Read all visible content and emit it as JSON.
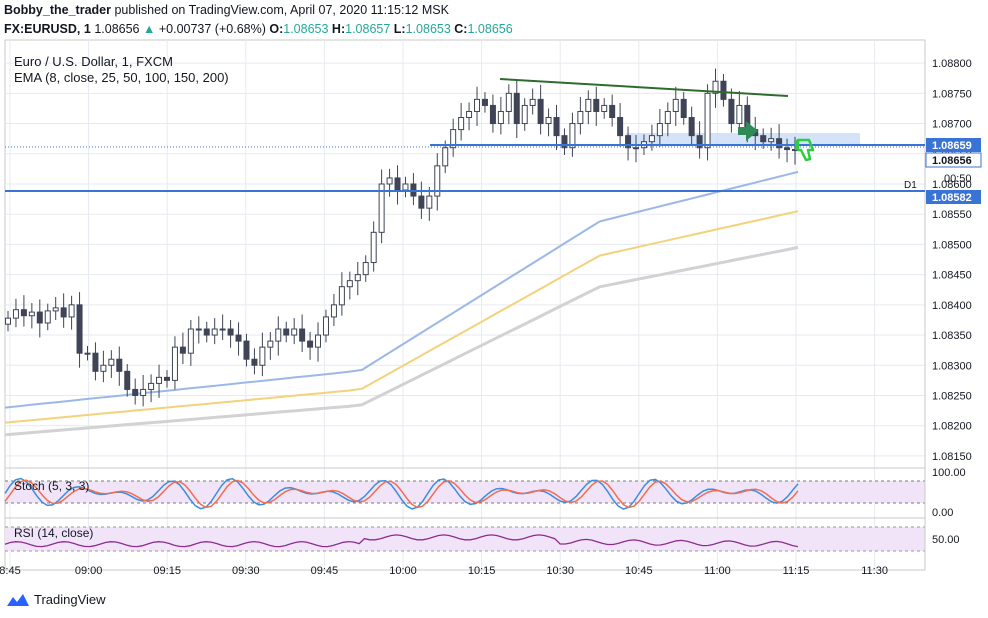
{
  "header": {
    "author": "Bobby_the_trader",
    "published_text": "published on TradingView.com, April 07, 2020 11:15:12 MSK",
    "symbol": "FX:EURUSD, 1",
    "last": "1.08656",
    "change": "+0.00737 (+0.68%)",
    "o_label": "O:",
    "o": "1.08653",
    "h_label": "H:",
    "h": "1.08657",
    "l_label": "L:",
    "l": "1.08653",
    "c_label": "C:",
    "c": "1.08656"
  },
  "legend": {
    "title": "Euro / U.S. Dollar, 1, FXCM",
    "ema": "EMA (8, close, 25, 50, 100, 150, 200)",
    "stoch": "Stoch (5, 3, 3)",
    "rsi": "RSI (14, close)"
  },
  "price_tags": {
    "upper_level": "1.08659",
    "current": "1.08656",
    "countdown": "00:50",
    "lower_level": "1.08582",
    "d1_label": "D1",
    "stoch_top": "100.00",
    "stoch_bottom": "0.00",
    "rsi_mid": "50.00"
  },
  "footer": {
    "brand": "TradingView"
  },
  "colors": {
    "up": "#3f4456",
    "grid": "#e6e9f0",
    "level": "#3a73d6",
    "ema_blue": "#9bb8e8",
    "ema_yellow": "#f2d27a",
    "ema_gray": "#d2d2d2",
    "trend": "#2e6b2e",
    "stoch_k": "#3a8de0",
    "stoch_d": "#f26d4f",
    "rsi": "#8e2c8e",
    "band": "#f1e4f9",
    "green": "#2ecc40",
    "arrow": "#2e8b57"
  },
  "chart_data": {
    "type": "candlestick",
    "symbol": "EURUSD",
    "timeframe": "1",
    "x_tick_labels": [
      "8:45",
      "09:00",
      "09:15",
      "09:30",
      "09:45",
      "10:00",
      "10:15",
      "10:30",
      "10:45",
      "11:00",
      "11:15",
      "11:30"
    ],
    "y_tick_labels": [
      "1.08800",
      "1.08750",
      "1.08700",
      "1.08650",
      "1.08600",
      "1.08550",
      "1.08500",
      "1.08450",
      "1.08400",
      "1.08350",
      "1.08300",
      "1.08250",
      "1.08200",
      "1.08150"
    ],
    "ylim": [
      1.0813,
      1.0883
    ],
    "close_path": [
      1.08378,
      1.08392,
      1.08382,
      1.08388,
      1.0837,
      1.0839,
      1.08395,
      1.0838,
      1.084,
      1.0832,
      1.0832,
      1.0829,
      1.083,
      1.0831,
      1.0829,
      1.0826,
      1.0825,
      1.0826,
      1.0827,
      1.0828,
      1.08275,
      1.0833,
      1.0832,
      1.0836,
      1.0836,
      1.0835,
      1.0836,
      1.0836,
      1.0835,
      1.0834,
      1.0831,
      1.083,
      1.0833,
      1.0834,
      1.0836,
      1.0835,
      1.0836,
      1.0834,
      1.0833,
      1.0835,
      1.0838,
      1.084,
      1.0843,
      1.0844,
      1.0845,
      1.0847,
      1.0852,
      1.086,
      1.0861,
      1.0859,
      1.086,
      1.0858,
      1.0856,
      1.0858,
      1.0863,
      1.0866,
      1.0869,
      1.0871,
      1.0872,
      1.0874,
      1.0873,
      1.087,
      1.0872,
      1.0875,
      1.087,
      1.0873,
      1.0874,
      1.087,
      1.0871,
      1.0868,
      1.0866,
      1.087,
      1.0872,
      1.0874,
      1.0872,
      1.0873,
      1.0871,
      1.0868,
      1.0866,
      1.0866,
      1.0867,
      1.0868,
      1.087,
      1.0872,
      1.0874,
      1.0871,
      1.0868,
      1.0866,
      1.0875,
      1.0877,
      1.0874,
      1.087,
      1.0873,
      1.0869,
      1.0868,
      1.0867,
      1.08675,
      1.0866,
      1.08657,
      1.08656
    ],
    "ema_series": [
      {
        "name": "EMA blue",
        "from": 1.0823,
        "to": 1.0862
      },
      {
        "name": "EMA yellow",
        "from": 1.08205,
        "to": 1.08555
      },
      {
        "name": "EMA gray",
        "from": 1.08185,
        "to": 1.08495
      }
    ],
    "levels": [
      {
        "name": "upper",
        "value": 1.08659
      },
      {
        "name": "D1",
        "value": 1.08582
      }
    ],
    "trendline": {
      "from": 1.08765,
      "to": 1.08737
    },
    "support_zone": [
      1.0865,
      1.08672
    ],
    "stochastic": {
      "range": [
        0,
        100
      ],
      "levels": [
        20,
        80
      ]
    },
    "rsi": {
      "range": [
        0,
        100
      ],
      "levels": [
        30,
        50,
        70
      ]
    }
  }
}
